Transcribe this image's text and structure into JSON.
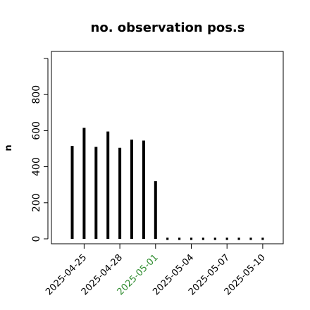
{
  "chart_data": {
    "type": "bar",
    "title": "no. observation pos.s",
    "ylabel": "n",
    "xlabel": "",
    "ylim": [
      0,
      1000
    ],
    "yticks": [
      0,
      200,
      400,
      600,
      800
    ],
    "x": [
      "2025-04-24",
      "2025-04-25",
      "2025-04-26",
      "2025-04-27",
      "2025-04-28",
      "2025-04-29",
      "2025-04-30",
      "2025-05-01",
      "2025-05-02",
      "2025-05-03",
      "2025-05-04",
      "2025-05-05",
      "2025-05-06",
      "2025-05-07",
      "2025-05-08",
      "2025-05-09",
      "2025-05-10"
    ],
    "values": [
      515,
      615,
      510,
      595,
      505,
      550,
      545,
      320,
      0,
      0,
      0,
      0,
      0,
      0,
      0,
      0,
      0
    ],
    "xticks": [
      {
        "date": "2025-04-25",
        "label": "2025-04-25",
        "color": "#000000"
      },
      {
        "date": "2025-04-28",
        "label": "2025-04-28",
        "color": "#000000"
      },
      {
        "date": "2025-05-01",
        "label": "2025-05-01",
        "color": "#2e8b2e"
      },
      {
        "date": "2025-05-04",
        "label": "2025-05-04",
        "color": "#000000"
      },
      {
        "date": "2025-05-07",
        "label": "2025-05-07",
        "color": "#000000"
      },
      {
        "date": "2025-05-10",
        "label": "2025-05-10",
        "color": "#000000"
      }
    ],
    "bar_color": "#000000",
    "grid": false,
    "legend": "none"
  }
}
